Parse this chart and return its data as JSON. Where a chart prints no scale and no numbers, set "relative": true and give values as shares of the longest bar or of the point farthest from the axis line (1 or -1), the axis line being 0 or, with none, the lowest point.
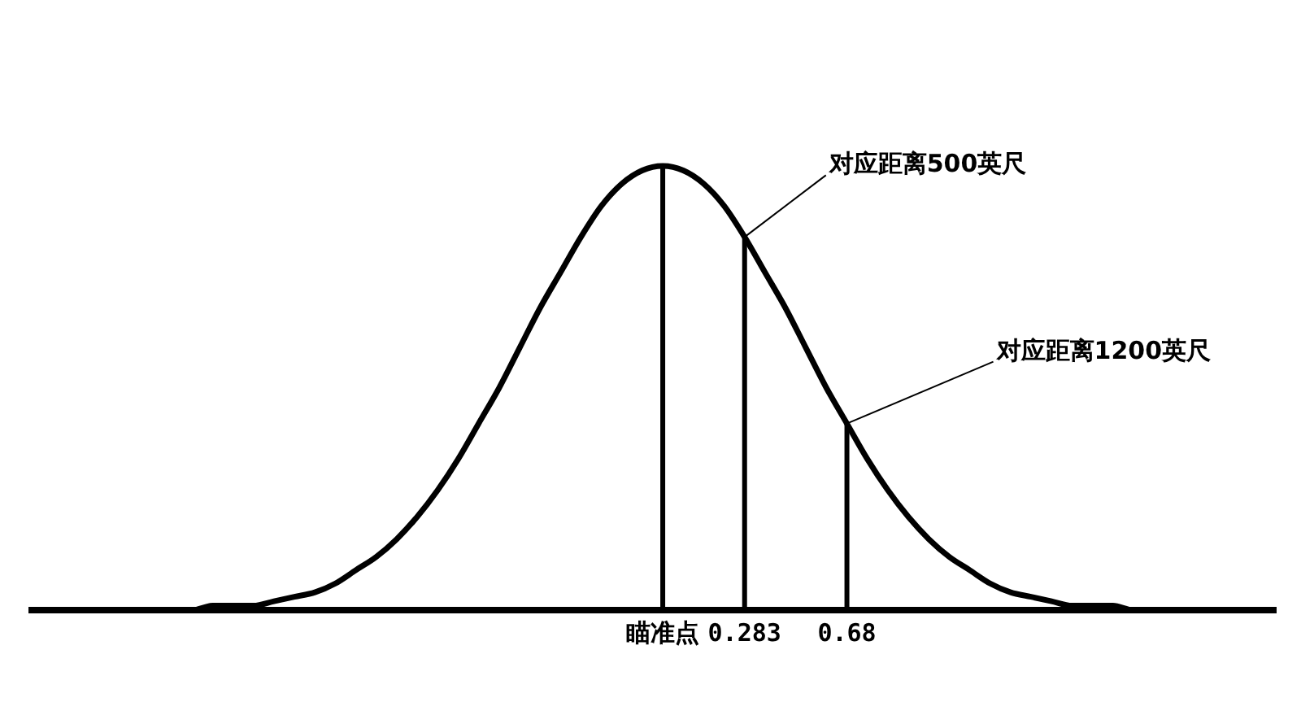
{
  "chart_data": {
    "type": "line",
    "relative": true,
    "categories": [
      null,
      null,
      null,
      null,
      null,
      null,
      null,
      null,
      null,
      null,
      null,
      null,
      null,
      null,
      null,
      null,
      null,
      null,
      null,
      null,
      null,
      null,
      null,
      null,
      null,
      null,
      null,
      null,
      null,
      null,
      null,
      "瞄准点",
      null,
      null,
      null,
      "0.283",
      null,
      null,
      null,
      null,
      "0.68",
      null,
      null,
      null,
      null,
      null,
      null,
      null,
      null,
      null,
      null,
      null,
      null,
      null,
      null,
      null,
      null,
      null,
      null,
      null,
      null,
      null
    ],
    "series": [
      {
        "color": "#000000",
        "values": [
          0,
          0,
          0,
          0,
          0,
          0,
          0,
          0,
          0,
          0.01,
          0.01,
          0.01,
          0.02,
          0.03,
          0.04,
          0.06,
          0.09,
          0.12,
          0.16,
          0.21,
          0.27,
          0.34,
          0.42,
          0.5,
          0.59,
          0.68,
          0.76,
          0.84,
          0.91,
          0.96,
          0.99,
          1,
          0.99,
          0.96,
          0.91,
          0.84,
          0.76,
          0.68,
          0.59,
          0.5,
          0.42,
          0.34,
          0.27,
          0.21,
          0.16,
          0.12,
          0.09,
          0.06,
          0.04,
          0.03,
          0.02,
          0.01,
          0.01,
          0.01,
          0,
          0,
          0,
          0,
          0,
          0,
          0,
          0
        ]
      }
    ],
    "ref_lines": [
      {
        "axis": "x",
        "value": "瞄准点"
      },
      {
        "axis": "x",
        "value": "0.283"
      },
      {
        "axis": "x",
        "value": "0.68"
      }
    ],
    "annotations": [
      {
        "text": "对应距离500英尺",
        "x": "0.283",
        "y": 0.84
      },
      {
        "text": "对应距离1200英尺",
        "x": "0.68",
        "y": 0.42
      }
    ],
    "line_style": "solid"
  }
}
